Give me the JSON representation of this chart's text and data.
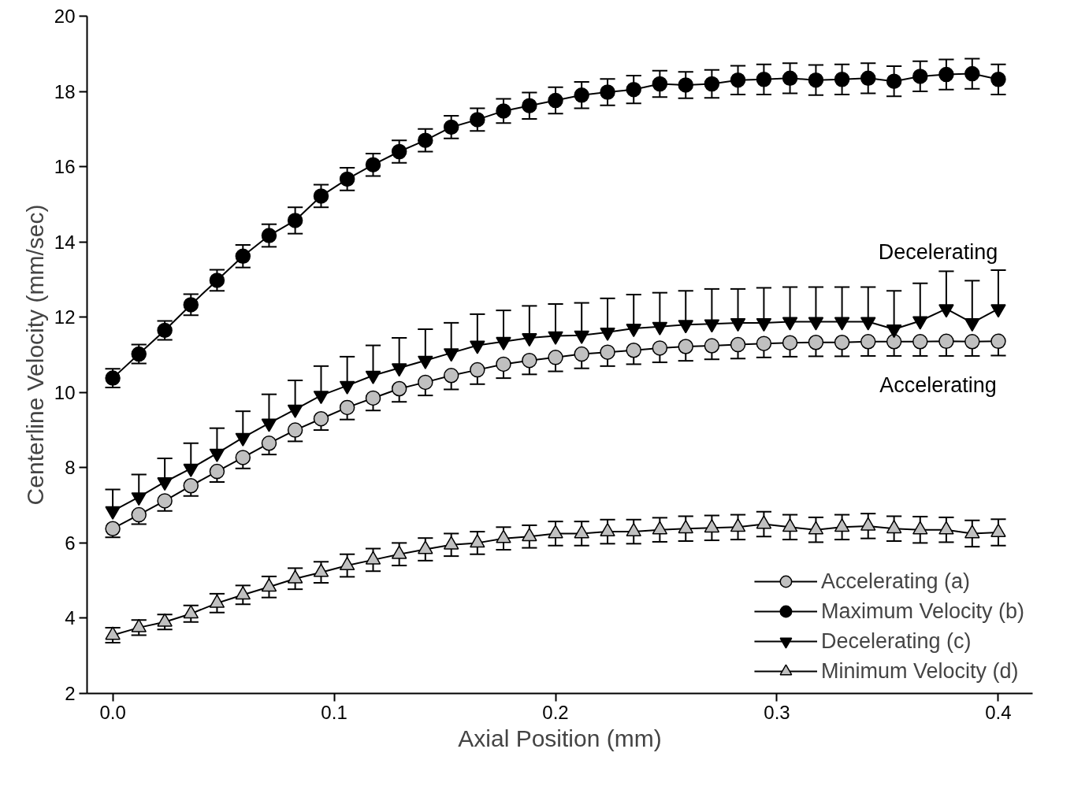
{
  "chart_data": {
    "type": "line",
    "xlabel": "Axial Position (mm)",
    "ylabel": "Centerline Velocity (mm/sec)",
    "x": [
      0,
      0.0118,
      0.0235,
      0.0353,
      0.0471,
      0.0588,
      0.0706,
      0.0824,
      0.0941,
      0.1059,
      0.1176,
      0.1294,
      0.1412,
      0.1529,
      0.1647,
      0.1765,
      0.1882,
      0.2,
      0.2118,
      0.2235,
      0.2353,
      0.2471,
      0.2588,
      0.2706,
      0.2824,
      0.2941,
      0.3059,
      0.3176,
      0.3294,
      0.3412,
      0.3529,
      0.3647,
      0.3765,
      0.3882,
      0.4
    ],
    "xlim": [
      -0.0116,
      0.4155
    ],
    "ylim": [
      2,
      20
    ],
    "xticks": [
      {
        "value": 0,
        "label": "0.0"
      },
      0.1,
      0.2,
      0.3,
      0.4
    ],
    "yticks": [
      2,
      4,
      6,
      8,
      10,
      12,
      14,
      16,
      18,
      20
    ],
    "grid": false,
    "legend": "bottom right",
    "line_style": "solid",
    "series": [
      {
        "name": "Accelerating (a)",
        "color": "#c0c0c0",
        "marker": "circle",
        "values": [
          6.38,
          6.75,
          7.12,
          7.52,
          7.9,
          8.27,
          8.65,
          9.0,
          9.3,
          9.6,
          9.85,
          10.1,
          10.27,
          10.45,
          10.6,
          10.75,
          10.85,
          10.93,
          11.02,
          11.07,
          11.12,
          11.18,
          11.22,
          11.24,
          11.27,
          11.3,
          11.32,
          11.33,
          11.33,
          11.35,
          11.35,
          11.35,
          11.36,
          11.35,
          11.36
        ],
        "errors": [
          [
            6.15,
            6.38
          ],
          [
            6.5,
            6.75
          ],
          [
            6.85,
            7.12
          ],
          [
            7.25,
            7.52
          ],
          [
            7.62,
            7.9
          ],
          [
            7.98,
            8.27
          ],
          [
            8.35,
            8.65
          ],
          [
            8.7,
            9.0
          ],
          [
            9.0,
            9.3
          ],
          [
            9.28,
            9.6
          ],
          [
            9.52,
            9.85
          ],
          [
            9.75,
            10.1
          ],
          [
            9.92,
            10.27
          ],
          [
            10.08,
            10.45
          ],
          [
            10.22,
            10.6
          ],
          [
            10.38,
            10.75
          ],
          [
            10.48,
            10.85
          ],
          [
            10.56,
            10.93
          ],
          [
            10.64,
            11.02
          ],
          [
            10.7,
            11.07
          ],
          [
            10.75,
            11.12
          ],
          [
            10.8,
            11.18
          ],
          [
            10.84,
            11.22
          ],
          [
            10.88,
            11.24
          ],
          [
            10.9,
            11.27
          ],
          [
            10.93,
            11.3
          ],
          [
            10.95,
            11.32
          ],
          [
            10.96,
            11.33
          ],
          [
            10.96,
            11.33
          ],
          [
            10.97,
            11.35
          ],
          [
            10.97,
            11.35
          ],
          [
            10.97,
            11.35
          ],
          [
            10.97,
            11.36
          ],
          [
            10.97,
            11.35
          ],
          [
            10.98,
            11.36
          ]
        ]
      },
      {
        "name": "Maximum Velocity (b)",
        "color": "#000000",
        "marker": "circle",
        "values": [
          10.38,
          11.02,
          11.65,
          12.33,
          12.98,
          13.62,
          14.17,
          14.57,
          15.22,
          15.67,
          16.05,
          16.4,
          16.7,
          17.05,
          17.25,
          17.48,
          17.62,
          17.76,
          17.9,
          17.98,
          18.05,
          18.2,
          18.17,
          18.2,
          18.3,
          18.32,
          18.35,
          18.3,
          18.32,
          18.35,
          18.27,
          18.4,
          18.45,
          18.47,
          18.32
        ],
        "errors": [
          0.25,
          0.25,
          0.25,
          0.28,
          0.28,
          0.3,
          0.3,
          0.35,
          0.3,
          0.3,
          0.3,
          0.3,
          0.3,
          0.3,
          0.3,
          0.32,
          0.35,
          0.35,
          0.35,
          0.35,
          0.37,
          0.35,
          0.35,
          0.37,
          0.38,
          0.4,
          0.4,
          0.4,
          0.4,
          0.4,
          0.4,
          0.4,
          0.4,
          0.4,
          0.4
        ]
      },
      {
        "name": "Decelerating (c)",
        "color": "#000000",
        "marker": "triangle_down",
        "values": [
          6.85,
          7.22,
          7.62,
          7.98,
          8.38,
          8.8,
          9.18,
          9.55,
          9.92,
          10.18,
          10.45,
          10.65,
          10.85,
          11.05,
          11.25,
          11.35,
          11.45,
          11.5,
          11.52,
          11.6,
          11.7,
          11.75,
          11.8,
          11.82,
          11.85,
          11.85,
          11.88,
          11.88,
          11.88,
          11.88,
          11.68,
          11.9,
          12.22,
          11.85,
          12.22
        ],
        "errors": [
          [
            6.85,
            7.42
          ],
          [
            7.22,
            7.82
          ],
          [
            7.62,
            8.25
          ],
          [
            7.98,
            8.65
          ],
          [
            8.38,
            9.05
          ],
          [
            8.8,
            9.5
          ],
          [
            9.18,
            9.95
          ],
          [
            9.55,
            10.32
          ],
          [
            9.92,
            10.7
          ],
          [
            10.18,
            10.95
          ],
          [
            10.45,
            11.25
          ],
          [
            10.65,
            11.45
          ],
          [
            10.85,
            11.68
          ],
          [
            11.05,
            11.85
          ],
          [
            11.25,
            12.08
          ],
          [
            11.35,
            12.18
          ],
          [
            11.45,
            12.3
          ],
          [
            11.5,
            12.35
          ],
          [
            11.52,
            12.38
          ],
          [
            11.6,
            12.5
          ],
          [
            11.7,
            12.6
          ],
          [
            11.75,
            12.65
          ],
          [
            11.8,
            12.7
          ],
          [
            11.82,
            12.75
          ],
          [
            11.85,
            12.75
          ],
          [
            11.85,
            12.78
          ],
          [
            11.88,
            12.8
          ],
          [
            11.88,
            12.8
          ],
          [
            11.88,
            12.8
          ],
          [
            11.88,
            12.8
          ],
          [
            11.68,
            12.7
          ],
          [
            11.9,
            12.9
          ],
          [
            12.22,
            13.22
          ],
          [
            11.85,
            12.97
          ],
          [
            12.22,
            13.25
          ]
        ]
      },
      {
        "name": "Minimum Velocity (d)",
        "color": "#c0c0c0",
        "marker": "triangle",
        "values": [
          3.55,
          3.75,
          3.9,
          4.12,
          4.4,
          4.62,
          4.83,
          5.05,
          5.22,
          5.4,
          5.55,
          5.7,
          5.83,
          5.95,
          6.0,
          6.12,
          6.17,
          6.25,
          6.25,
          6.3,
          6.3,
          6.35,
          6.38,
          6.4,
          6.42,
          6.5,
          6.42,
          6.35,
          6.42,
          6.45,
          6.38,
          6.35,
          6.35,
          6.25,
          6.28
        ],
        "errors": [
          0.2,
          0.2,
          0.2,
          0.22,
          0.25,
          0.25,
          0.28,
          0.28,
          0.28,
          0.3,
          0.3,
          0.3,
          0.3,
          0.3,
          0.3,
          0.3,
          0.3,
          0.32,
          0.32,
          0.32,
          0.32,
          0.32,
          0.33,
          0.33,
          0.33,
          0.33,
          0.33,
          0.33,
          0.33,
          0.33,
          0.33,
          0.35,
          0.33,
          0.35,
          0.35
        ]
      }
    ],
    "annotations": [
      "Decelerating",
      "Accelerating"
    ]
  }
}
